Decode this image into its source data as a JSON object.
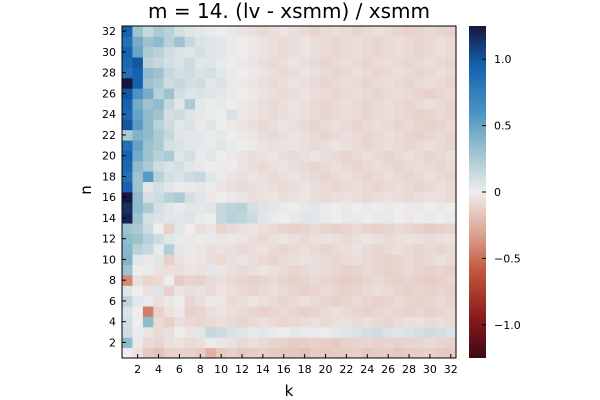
{
  "chart_data": {
    "type": "heatmap",
    "title": "m = 14. (lv - xsmm) / xsmm",
    "xlabel": "k",
    "ylabel": "n",
    "x": [
      1,
      2,
      3,
      4,
      5,
      6,
      7,
      8,
      9,
      10,
      11,
      12,
      13,
      14,
      15,
      16,
      17,
      18,
      19,
      20,
      21,
      22,
      23,
      24,
      25,
      26,
      27,
      28,
      29,
      30,
      31,
      32
    ],
    "y": [
      1,
      2,
      3,
      4,
      5,
      6,
      7,
      8,
      9,
      10,
      11,
      12,
      13,
      14,
      15,
      16,
      17,
      18,
      19,
      20,
      21,
      22,
      23,
      24,
      25,
      26,
      27,
      28,
      29,
      30,
      31,
      32
    ],
    "x_ticks": [
      2,
      4,
      6,
      8,
      10,
      12,
      14,
      16,
      18,
      20,
      22,
      24,
      26,
      28,
      30,
      32
    ],
    "y_ticks": [
      2,
      4,
      6,
      8,
      10,
      12,
      14,
      16,
      18,
      20,
      22,
      24,
      26,
      28,
      30,
      32
    ],
    "x_tick_labels": [
      "2",
      "4",
      "6",
      "8",
      "10",
      "12",
      "14",
      "16",
      "18",
      "20",
      "22",
      "24",
      "26",
      "28",
      "30",
      "32"
    ],
    "y_tick_labels": [
      "2",
      "4",
      "6",
      "8",
      "10",
      "12",
      "14",
      "16",
      "18",
      "20",
      "22",
      "24",
      "26",
      "28",
      "30",
      "32"
    ],
    "colorbar": {
      "range": [
        -1.25,
        1.25
      ],
      "ticks": [
        -1.0,
        -0.5,
        0,
        0.5,
        1.0
      ],
      "tick_labels": [
        "−1.0",
        "−0.5",
        "0",
        "0.5",
        "1.0"
      ],
      "colormap_stops": [
        {
          "v": -1.25,
          "color": "#3b0a12"
        },
        {
          "v": -0.95,
          "color": "#8b1a1f"
        },
        {
          "v": -0.6,
          "color": "#c2563a"
        },
        {
          "v": -0.3,
          "color": "#dca696"
        },
        {
          "v": 0.0,
          "color": "#eeeded"
        },
        {
          "v": 0.3,
          "color": "#9ec3cf"
        },
        {
          "v": 0.6,
          "color": "#4b93c2"
        },
        {
          "v": 0.95,
          "color": "#1462b0"
        },
        {
          "v": 1.25,
          "color": "#17163f"
        }
      ]
    },
    "legend": "none",
    "grid": false,
    "rows": [
      [
        0.0,
        -0.05,
        -0.15,
        -0.18,
        -0.12,
        -0.1,
        -0.12,
        -0.14,
        -0.25,
        -0.15,
        -0.12,
        -0.15,
        -0.13,
        -0.12,
        -0.14,
        -0.15,
        -0.16,
        -0.18,
        -0.14,
        -0.15,
        -0.14,
        -0.13,
        -0.12,
        -0.15,
        -0.14,
        -0.13,
        -0.16,
        -0.14,
        -0.13,
        -0.12,
        -0.14,
        -0.15
      ],
      [
        0.35,
        -0.02,
        -0.08,
        -0.1,
        -0.06,
        -0.05,
        -0.08,
        -0.06,
        0.02,
        -0.03,
        -0.05,
        -0.08,
        -0.06,
        -0.08,
        -0.1,
        -0.12,
        -0.14,
        -0.13,
        -0.12,
        -0.13,
        -0.15,
        -0.12,
        -0.1,
        -0.1,
        -0.12,
        -0.1,
        -0.12,
        -0.1,
        -0.1,
        -0.08,
        -0.1,
        -0.12
      ],
      [
        0.12,
        0.02,
        -0.04,
        -0.08,
        -0.06,
        0.0,
        -0.04,
        0.05,
        0.15,
        0.12,
        0.08,
        0.06,
        0.03,
        0.05,
        0.02,
        0.0,
        0.03,
        0.02,
        0.02,
        0.01,
        0.03,
        0.05,
        0.08,
        0.1,
        0.12,
        0.08,
        0.06,
        0.08,
        0.1,
        0.12,
        0.1,
        0.08
      ],
      [
        0.1,
        0.0,
        0.35,
        -0.08,
        -0.12,
        -0.06,
        -0.08,
        -0.1,
        -0.08,
        -0.06,
        -0.08,
        -0.1,
        -0.08,
        -0.06,
        -0.08,
        -0.1,
        -0.08,
        -0.07,
        -0.06,
        -0.08,
        -0.06,
        -0.05,
        -0.08,
        -0.06,
        -0.08,
        -0.1,
        -0.08,
        -0.06,
        -0.05,
        -0.08,
        -0.06,
        -0.08
      ],
      [
        0.08,
        0.0,
        -0.45,
        -0.12,
        -0.05,
        -0.02,
        -0.12,
        -0.1,
        -0.06,
        -0.04,
        -0.06,
        -0.08,
        -0.1,
        -0.12,
        -0.1,
        -0.08,
        -0.1,
        -0.12,
        -0.1,
        -0.08,
        -0.06,
        -0.08,
        -0.1,
        -0.12,
        -0.1,
        -0.08,
        -0.1,
        -0.12,
        -0.1,
        -0.12,
        -0.1,
        -0.08
      ],
      [
        0.18,
        0.04,
        0.02,
        -0.06,
        -0.03,
        0.0,
        -0.1,
        -0.06,
        -0.02,
        -0.03,
        -0.08,
        -0.06,
        -0.04,
        -0.06,
        -0.08,
        -0.1,
        -0.08,
        -0.06,
        -0.08,
        -0.1,
        -0.12,
        -0.1,
        -0.08,
        -0.1,
        -0.12,
        -0.1,
        -0.08,
        -0.1,
        -0.12,
        -0.1,
        -0.08,
        -0.1
      ],
      [
        0.06,
        0.0,
        -0.05,
        0.06,
        -0.12,
        -0.04,
        -0.06,
        -0.05,
        -0.08,
        -0.04,
        -0.06,
        -0.08,
        -0.1,
        -0.08,
        -0.06,
        -0.08,
        -0.1,
        -0.12,
        -0.1,
        -0.08,
        -0.1,
        -0.12,
        -0.1,
        -0.08,
        -0.06,
        -0.08,
        -0.1,
        -0.12,
        -0.1,
        -0.12,
        -0.1,
        -0.12
      ],
      [
        -0.4,
        -0.06,
        -0.1,
        -0.08,
        0.0,
        -0.14,
        -0.1,
        -0.12,
        -0.08,
        -0.06,
        -0.08,
        -0.1,
        -0.12,
        -0.1,
        -0.08,
        -0.1,
        -0.12,
        -0.1,
        -0.08,
        -0.1,
        -0.12,
        -0.14,
        -0.12,
        -0.1,
        -0.08,
        -0.1,
        -0.12,
        -0.1,
        -0.12,
        -0.14,
        -0.12,
        -0.1
      ],
      [
        0.3,
        0.0,
        0.02,
        -0.05,
        -0.06,
        -0.06,
        -0.04,
        -0.05,
        0.04,
        -0.04,
        -0.06,
        -0.08,
        -0.06,
        -0.04,
        -0.06,
        -0.08,
        -0.1,
        -0.08,
        -0.06,
        -0.08,
        -0.1,
        -0.12,
        -0.1,
        -0.08,
        -0.1,
        -0.12,
        -0.1,
        -0.08,
        -0.1,
        -0.12,
        -0.1,
        -0.12
      ],
      [
        0.4,
        0.04,
        -0.02,
        0.05,
        -0.12,
        -0.05,
        -0.02,
        -0.04,
        -0.06,
        -0.08,
        -0.06,
        -0.04,
        -0.06,
        -0.08,
        -0.1,
        -0.08,
        -0.06,
        -0.05,
        -0.06,
        -0.08,
        -0.1,
        -0.08,
        -0.06,
        -0.08,
        -0.1,
        -0.12,
        -0.1,
        -0.08,
        -0.1,
        -0.08,
        -0.06,
        -0.08
      ],
      [
        0.38,
        0.2,
        0.15,
        0.02,
        0.22,
        0.04,
        0.02,
        -0.04,
        -0.06,
        -0.05,
        -0.06,
        -0.08,
        -0.06,
        -0.05,
        -0.08,
        -0.1,
        -0.08,
        -0.06,
        -0.08,
        -0.1,
        -0.08,
        -0.06,
        -0.05,
        -0.08,
        -0.1,
        -0.08,
        -0.06,
        -0.08,
        -0.1,
        -0.08,
        -0.1,
        -0.08
      ],
      [
        0.35,
        0.3,
        0.2,
        0.12,
        0.05,
        0.03,
        -0.02,
        0.02,
        0.03,
        -0.04,
        -0.02,
        -0.04,
        -0.06,
        -0.08,
        -0.06,
        -0.04,
        -0.06,
        -0.08,
        -0.06,
        -0.05,
        -0.06,
        -0.08,
        -0.06,
        -0.04,
        -0.06,
        -0.08,
        -0.06,
        -0.05,
        -0.06,
        -0.08,
        -0.06,
        -0.05
      ],
      [
        0.3,
        0.25,
        0.12,
        0.0,
        -0.12,
        0.05,
        0.0,
        -0.06,
        -0.04,
        -0.1,
        -0.08,
        -0.06,
        -0.04,
        -0.06,
        -0.08,
        -0.1,
        -0.12,
        -0.1,
        -0.08,
        -0.1,
        -0.12,
        -0.1,
        -0.08,
        -0.1,
        -0.12,
        -0.1,
        -0.08,
        -0.1,
        -0.12,
        -0.14,
        -0.12,
        -0.1
      ],
      [
        1.2,
        0.3,
        0.1,
        0.08,
        0.05,
        0.04,
        0.06,
        0.02,
        0.0,
        0.15,
        0.2,
        0.18,
        0.12,
        0.05,
        0.02,
        0.0,
        0.03,
        0.05,
        0.04,
        0.02,
        0.0,
        0.03,
        0.02,
        0.0,
        0.02,
        0.03,
        0.0,
        -0.02,
        0.0,
        0.02,
        0.0,
        -0.02
      ],
      [
        1.15,
        0.35,
        0.25,
        0.1,
        0.05,
        0.02,
        0.05,
        0.04,
        0.06,
        0.15,
        0.18,
        0.2,
        0.1,
        0.06,
        0.04,
        0.02,
        0.0,
        0.03,
        0.04,
        0.02,
        0.0,
        -0.02,
        0.0,
        0.02,
        0.0,
        -0.02,
        0.0,
        0.02,
        -0.02,
        0.0,
        -0.02,
        0.0
      ],
      [
        1.25,
        0.35,
        0.1,
        0.12,
        0.2,
        0.25,
        0.1,
        0.05,
        -0.02,
        0.0,
        -0.02,
        -0.04,
        -0.06,
        -0.05,
        -0.04,
        -0.06,
        -0.05,
        -0.04,
        -0.06,
        -0.08,
        -0.06,
        -0.05,
        -0.06,
        -0.08,
        -0.06,
        -0.05,
        -0.06,
        -0.08,
        -0.06,
        -0.05,
        -0.06,
        -0.08
      ],
      [
        0.95,
        0.3,
        0.05,
        0.1,
        0.05,
        0.02,
        -0.02,
        0.04,
        0.02,
        -0.04,
        -0.06,
        -0.08,
        -0.06,
        -0.05,
        -0.06,
        -0.08,
        -0.06,
        -0.04,
        -0.06,
        -0.08,
        -0.1,
        -0.08,
        -0.06,
        -0.08,
        -0.1,
        -0.08,
        -0.06,
        -0.08,
        -0.1,
        -0.08,
        -0.06,
        -0.08
      ],
      [
        0.85,
        0.3,
        0.55,
        0.2,
        0.1,
        0.08,
        0.12,
        0.15,
        0.05,
        0.02,
        -0.04,
        -0.06,
        -0.04,
        -0.06,
        -0.08,
        -0.06,
        -0.04,
        -0.06,
        -0.08,
        -0.1,
        -0.08,
        -0.06,
        -0.08,
        -0.1,
        -0.08,
        -0.06,
        -0.08,
        -0.1,
        -0.08,
        -0.06,
        -0.08,
        -0.1
      ],
      [
        0.9,
        0.35,
        0.25,
        0.12,
        0.08,
        0.1,
        0.05,
        -0.02,
        0.0,
        0.02,
        0.0,
        -0.04,
        -0.06,
        -0.08,
        -0.06,
        -0.04,
        -0.06,
        -0.08,
        -0.1,
        -0.08,
        -0.06,
        -0.08,
        -0.1,
        -0.08,
        -0.06,
        -0.08,
        -0.1,
        -0.08,
        -0.06,
        -0.08,
        -0.1,
        -0.08
      ],
      [
        0.95,
        0.45,
        0.3,
        0.2,
        0.25,
        0.06,
        0.1,
        0.02,
        0.05,
        0.0,
        -0.02,
        -0.04,
        -0.06,
        -0.05,
        -0.04,
        -0.06,
        -0.08,
        -0.06,
        -0.04,
        -0.06,
        -0.08,
        -0.1,
        -0.08,
        -0.06,
        -0.08,
        -0.1,
        -0.08,
        -0.06,
        -0.08,
        -0.1,
        -0.08,
        -0.06
      ],
      [
        0.85,
        0.5,
        0.3,
        0.25,
        0.1,
        0.08,
        0.05,
        0.03,
        0.02,
        0.05,
        0.02,
        0.0,
        -0.02,
        -0.04,
        -0.06,
        -0.05,
        -0.04,
        -0.06,
        -0.08,
        -0.06,
        -0.04,
        -0.06,
        -0.08,
        -0.1,
        -0.08,
        -0.06,
        -0.08,
        -0.1,
        -0.08,
        -0.06,
        -0.08,
        -0.1
      ],
      [
        0.25,
        0.4,
        0.35,
        0.25,
        0.15,
        0.06,
        0.05,
        0.04,
        0.02,
        0.03,
        0.0,
        -0.02,
        -0.04,
        -0.06,
        -0.08,
        -0.06,
        -0.04,
        -0.06,
        -0.08,
        -0.1,
        -0.08,
        -0.06,
        -0.08,
        -0.1,
        -0.08,
        -0.06,
        -0.08,
        -0.1,
        -0.12,
        -0.1,
        -0.08,
        -0.1
      ],
      [
        1.0,
        0.55,
        0.35,
        0.2,
        0.12,
        0.05,
        0.08,
        -0.02,
        0.06,
        0.0,
        -0.02,
        -0.04,
        -0.06,
        -0.08,
        -0.06,
        -0.04,
        -0.06,
        -0.08,
        -0.1,
        -0.08,
        -0.06,
        -0.08,
        -0.1,
        -0.08,
        -0.06,
        -0.08,
        -0.1,
        -0.08,
        -0.1,
        -0.12,
        -0.1,
        -0.08
      ],
      [
        0.9,
        0.5,
        0.35,
        0.3,
        0.1,
        0.12,
        0.06,
        0.04,
        0.02,
        0.0,
        0.08,
        -0.02,
        -0.04,
        -0.06,
        -0.08,
        -0.06,
        -0.05,
        -0.06,
        -0.08,
        -0.1,
        -0.08,
        -0.06,
        -0.08,
        -0.1,
        -0.08,
        -0.06,
        -0.08,
        -0.1,
        -0.12,
        -0.1,
        -0.08,
        -0.1
      ],
      [
        0.95,
        0.45,
        0.3,
        0.35,
        0.15,
        0.05,
        0.25,
        0.04,
        0.02,
        0.03,
        0.0,
        -0.02,
        -0.04,
        -0.06,
        -0.08,
        -0.06,
        -0.04,
        -0.06,
        -0.08,
        -0.1,
        -0.08,
        -0.06,
        -0.08,
        -0.1,
        -0.08,
        -0.06,
        -0.08,
        -0.1,
        -0.08,
        -0.06,
        -0.08,
        -0.1
      ],
      [
        1.0,
        0.6,
        0.45,
        0.2,
        0.3,
        0.1,
        0.06,
        0.08,
        0.06,
        0.04,
        0.02,
        0.0,
        -0.02,
        -0.04,
        -0.06,
        -0.08,
        -0.06,
        -0.04,
        -0.06,
        -0.08,
        -0.1,
        -0.08,
        -0.06,
        -0.08,
        -0.1,
        -0.08,
        -0.06,
        -0.08,
        -0.1,
        -0.12,
        -0.1,
        -0.08
      ],
      [
        1.25,
        0.95,
        0.3,
        0.25,
        0.12,
        0.15,
        0.1,
        0.12,
        0.05,
        0.08,
        0.02,
        -0.02,
        -0.04,
        -0.06,
        -0.08,
        -0.06,
        -0.04,
        -0.06,
        -0.08,
        -0.1,
        -0.08,
        -0.06,
        -0.08,
        -0.1,
        -0.08,
        -0.06,
        -0.08,
        -0.1,
        -0.08,
        -0.06,
        -0.08,
        -0.1
      ],
      [
        0.85,
        0.95,
        0.35,
        0.3,
        0.15,
        0.1,
        0.12,
        0.08,
        0.1,
        0.05,
        0.02,
        0.0,
        -0.02,
        -0.04,
        -0.06,
        -0.08,
        -0.06,
        -0.04,
        -0.06,
        -0.08,
        -0.1,
        -0.08,
        -0.06,
        -0.08,
        -0.1,
        -0.08,
        -0.06,
        -0.08,
        -0.1,
        -0.08,
        -0.06,
        -0.08
      ],
      [
        0.9,
        1.0,
        0.2,
        0.15,
        0.1,
        0.08,
        0.12,
        0.05,
        0.06,
        0.02,
        0.0,
        -0.02,
        -0.04,
        -0.06,
        -0.08,
        -0.06,
        -0.04,
        -0.06,
        -0.08,
        -0.1,
        -0.08,
        -0.06,
        -0.08,
        -0.1,
        -0.08,
        -0.06,
        -0.08,
        -0.1,
        -0.08,
        -0.06,
        -0.08,
        -0.1
      ],
      [
        0.95,
        0.5,
        0.25,
        0.2,
        0.12,
        0.08,
        0.05,
        0.1,
        0.06,
        0.04,
        0.02,
        0.0,
        -0.02,
        -0.04,
        -0.06,
        -0.08,
        -0.06,
        -0.04,
        -0.06,
        -0.08,
        -0.1,
        -0.08,
        -0.06,
        -0.08,
        -0.1,
        -0.08,
        -0.06,
        -0.08,
        -0.1,
        -0.08,
        -0.06,
        -0.08
      ],
      [
        0.85,
        0.45,
        0.3,
        0.35,
        0.2,
        0.3,
        0.15,
        0.08,
        0.06,
        0.04,
        0.02,
        0.0,
        -0.02,
        -0.04,
        -0.06,
        -0.08,
        -0.06,
        -0.04,
        -0.06,
        -0.08,
        -0.1,
        -0.08,
        -0.06,
        -0.08,
        -0.1,
        -0.08,
        -0.06,
        -0.08,
        -0.1,
        -0.08,
        -0.06,
        -0.08
      ],
      [
        0.95,
        0.3,
        0.15,
        0.25,
        0.2,
        0.1,
        0.06,
        0.04,
        0.02,
        0.0,
        -0.02,
        -0.04,
        -0.06,
        -0.08,
        -0.06,
        -0.04,
        -0.06,
        -0.08,
        -0.1,
        -0.08,
        -0.06,
        -0.08,
        -0.1,
        -0.08,
        -0.06,
        -0.08,
        -0.1,
        -0.12,
        -0.1,
        -0.08,
        -0.1,
        -0.12
      ]
    ]
  }
}
